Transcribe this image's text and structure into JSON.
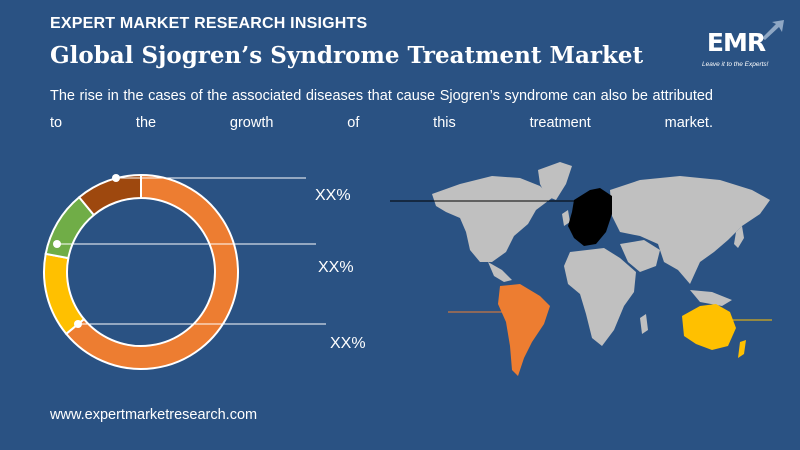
{
  "header": {
    "eyebrow": "EXPERT MARKET RESEARCH INSIGHTS",
    "title": "Global Sjogren’s Syndrome Treatment Market",
    "description": "The rise in the cases of the associated diseases that cause Sjogren’s syndrome can also be attributed to the growth of this treatment market."
  },
  "logo": {
    "text": "EMR",
    "tagline": "Leave it to the Experts!"
  },
  "colors": {
    "background": "#2a5283",
    "orange": "#ed7d31",
    "yellow": "#ffc000",
    "green": "#70ad47",
    "brown": "#9e480e",
    "map_land": "#c0c0c0",
    "map_europe": "#000000"
  },
  "chart_data": {
    "type": "pie",
    "variant": "donut",
    "slices": [
      {
        "color": "#ed7d31",
        "value": 64
      },
      {
        "color": "#ffc000",
        "value": 14
      },
      {
        "color": "#70ad47",
        "value": 11
      },
      {
        "color": "#9e480e",
        "value": 11
      }
    ],
    "annotations": [
      "XX%",
      "XX%",
      "XX%"
    ]
  },
  "footer": {
    "url": "www.expertmarketresearch.com"
  }
}
